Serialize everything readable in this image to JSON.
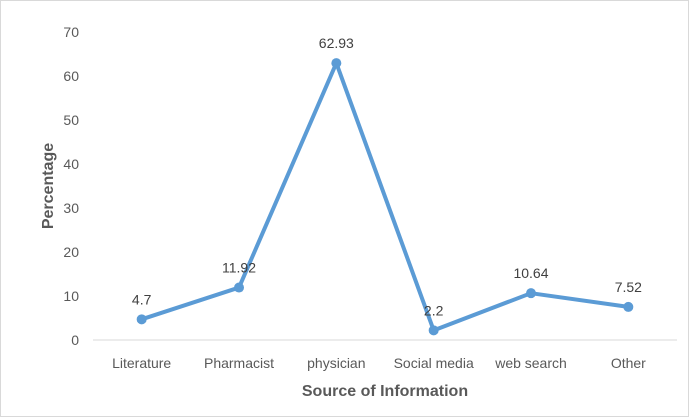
{
  "chart_data": {
    "type": "line",
    "title": "",
    "xlabel": "Source of Information",
    "ylabel": "Percentage",
    "categories": [
      "Literature",
      "Pharmacist",
      "physician",
      "Social media",
      "web search",
      "Other"
    ],
    "series": [
      {
        "values": [
          4.7,
          11.92,
          62.93,
          2.2,
          10.64,
          7.52
        ],
        "labels": [
          "4.7",
          "11.92",
          "62.93",
          "2.2",
          "10.64",
          "7.52"
        ],
        "color": "#5b9bd5"
      }
    ],
    "ylim": [
      0,
      70
    ],
    "yticks": [
      "0",
      "10",
      "20",
      "30",
      "40",
      "50",
      "60",
      "70"
    ],
    "grid": false,
    "legend": "none"
  }
}
